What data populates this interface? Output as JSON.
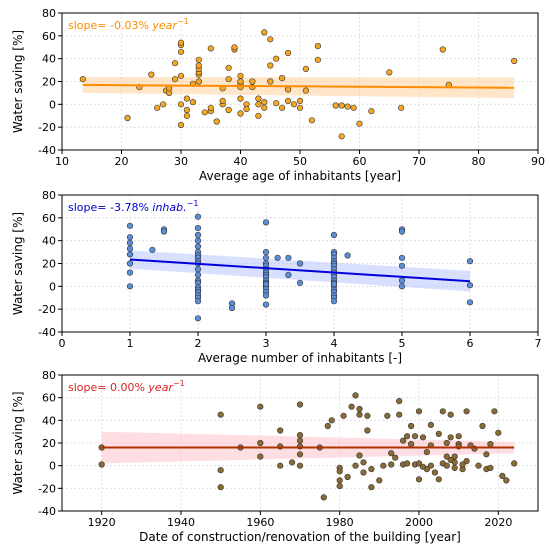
{
  "chart_data": [
    {
      "type": "scatter",
      "xlabel": "Average age of inhabitants [year]",
      "ylabel": "Water saving [%]",
      "xlim": [
        10,
        90
      ],
      "ylim": [
        -40,
        80
      ],
      "xticks": [
        10,
        20,
        30,
        40,
        50,
        60,
        70,
        80,
        90
      ],
      "yticks": [
        -40,
        -20,
        0,
        20,
        40,
        60,
        80
      ],
      "grid": true,
      "annotation": {
        "prefix": "slope= -0.03% ",
        "unit": "year",
        "exponent": "−1",
        "position": "top-left"
      },
      "colors": {
        "marker": "#f5a623",
        "line": "#ff8c00",
        "band": "#ffc888",
        "text": "#ff8c00"
      },
      "regression": {
        "x": [
          13.5,
          86
        ],
        "y": [
          17,
          14.5
        ],
        "band_halfwidth": [
          7,
          9
        ]
      },
      "x": [
        13.5,
        21,
        23,
        25,
        26,
        27,
        27.5,
        28,
        28,
        29,
        29,
        30,
        30,
        30,
        30,
        30,
        30,
        31,
        31,
        31,
        32,
        32,
        33,
        33,
        33,
        33,
        33,
        33,
        34,
        35,
        35,
        35,
        36,
        37,
        37,
        37,
        38,
        38,
        38,
        39,
        39,
        40,
        40,
        40,
        40,
        40,
        40,
        41,
        41,
        42,
        42,
        43,
        43,
        43,
        44,
        44,
        44,
        45,
        45,
        45,
        46,
        46,
        47,
        47,
        48,
        48,
        48,
        49,
        50,
        50,
        51,
        51,
        52,
        53,
        53,
        56,
        57,
        57,
        58,
        59,
        60,
        62,
        65,
        67,
        74,
        75,
        86
      ],
      "y": [
        22,
        -12,
        15,
        26,
        -3,
        0,
        12,
        10,
        14,
        36,
        22,
        0,
        25,
        46,
        52,
        54,
        -18,
        -10,
        -5,
        5,
        2,
        18,
        20,
        26,
        28,
        31,
        34,
        39,
        -7,
        -6,
        49,
        -3,
        -15,
        0,
        3,
        14,
        22,
        32,
        -5,
        48,
        50,
        15,
        18,
        -8,
        20,
        25,
        5,
        0,
        -4,
        15,
        20,
        -10,
        0,
        5,
        63,
        -3,
        2,
        20,
        34,
        57,
        1,
        40,
        -3,
        23,
        3,
        45,
        13,
        0,
        3,
        -3,
        12,
        31,
        -14,
        39,
        51,
        -1,
        -1,
        -28,
        -2,
        -3,
        -17,
        -6,
        28,
        -3,
        48,
        17,
        38
      ]
    },
    {
      "type": "scatter",
      "xlabel": "Average number of inhabitants [-]",
      "ylabel": "Water saving [%]",
      "xlim": [
        0,
        7
      ],
      "ylim": [
        -40,
        80
      ],
      "xticks": [
        0,
        1,
        2,
        3,
        4,
        5,
        6,
        7
      ],
      "yticks": [
        -40,
        -20,
        0,
        20,
        40,
        60,
        80
      ],
      "grid": true,
      "annotation": {
        "prefix": "slope= -3.78% ",
        "unit": "inhab.",
        "exponent": "−1",
        "position": "top-left"
      },
      "colors": {
        "marker": "#5b8fd9",
        "line": "#0000dd",
        "band": "#aab8ff",
        "text": "#0000cc"
      },
      "regression": {
        "x": [
          1,
          6
        ],
        "y": [
          23.5,
          4.5
        ],
        "band_halfwidth": [
          8,
          9
        ]
      },
      "x": [
        1,
        1,
        1,
        1,
        1,
        1,
        1,
        1,
        1.33,
        1.5,
        1.5,
        2,
        2,
        2,
        2,
        2,
        2,
        2,
        2,
        2,
        2,
        2,
        2,
        2,
        2,
        2,
        2,
        2,
        2,
        2,
        2,
        2,
        2.5,
        2.5,
        3,
        3,
        3,
        3,
        3,
        3,
        3,
        3,
        3,
        3,
        3,
        3,
        3,
        3,
        3,
        3,
        3,
        3.17,
        3.33,
        3.33,
        3.5,
        3.5,
        4,
        4,
        4,
        4,
        4,
        4,
        4,
        4,
        4,
        4,
        4,
        4,
        4,
        4,
        4,
        4,
        4,
        4,
        4,
        4,
        4.2,
        5,
        5,
        5,
        5,
        5,
        5,
        6,
        6,
        6
      ],
      "y": [
        53,
        43,
        38,
        33,
        28,
        20,
        12,
        0,
        32,
        50,
        48,
        61,
        51,
        45,
        40,
        35,
        30,
        27,
        25,
        22,
        5,
        3,
        -1,
        -3,
        -5,
        -8,
        -10,
        -13,
        -28,
        15,
        10,
        20,
        -15,
        -19,
        56,
        30,
        25,
        20,
        18,
        15,
        12,
        10,
        8,
        5,
        3,
        0,
        -2,
        -5,
        -8,
        -16,
        2,
        25,
        25,
        10,
        20,
        3,
        45,
        30,
        28,
        25,
        22,
        20,
        18,
        15,
        12,
        10,
        8,
        5,
        3,
        0,
        -3,
        -5,
        -8,
        -10,
        -13,
        2,
        27,
        50,
        48,
        25,
        18,
        5,
        0,
        22,
        1,
        -14
      ]
    },
    {
      "type": "scatter",
      "xlabel": "Date of construction/renovation of the building [year]",
      "ylabel": "Water saving [%]",
      "xlim": [
        1910,
        2030
      ],
      "ylim": [
        -40,
        80
      ],
      "xticks": [
        1920,
        1940,
        1960,
        1980,
        2000,
        2020
      ],
      "yticks": [
        -40,
        -20,
        0,
        20,
        40,
        60,
        80
      ],
      "grid": true,
      "annotation": {
        "prefix": "slope= 0.00% ",
        "unit": "year",
        "exponent": "−1",
        "position": "top-left"
      },
      "colors": {
        "marker": "#8a6a35",
        "line": "#b03000",
        "band": "#ffb6c1",
        "text": "#dd2222"
      },
      "regression": {
        "x": [
          1920,
          2024
        ],
        "y": [
          16,
          16
        ],
        "band_halfwidth": [
          14,
          5
        ]
      },
      "x": [
        1920,
        1920,
        1950,
        1950,
        1950,
        1955,
        1960,
        1960,
        1960,
        1965,
        1965,
        1965,
        1968,
        1970,
        1970,
        1970,
        1970,
        1970,
        1970,
        1975,
        1976,
        1977,
        1978,
        1980,
        1980,
        1980,
        1980,
        1981,
        1982,
        1983,
        1984,
        1984,
        1985,
        1985,
        1985,
        1986,
        1986,
        1987,
        1987,
        1988,
        1988,
        1990,
        1991,
        1992,
        1993,
        1993,
        1994,
        1995,
        1995,
        1996,
        1996,
        1997,
        1997,
        1998,
        1998,
        1999,
        1999,
        2000,
        2000,
        2000,
        2001,
        2001,
        2002,
        2002,
        2003,
        2003,
        2003,
        2004,
        2005,
        2005,
        2006,
        2006,
        2007,
        2007,
        2007,
        2008,
        2008,
        2008,
        2009,
        2009,
        2009,
        2010,
        2010,
        2010,
        2011,
        2011,
        2012,
        2012,
        2013,
        2014,
        2015,
        2016,
        2017,
        2017,
        2018,
        2018,
        2019,
        2020,
        2021,
        2022,
        2024
      ],
      "y": [
        16,
        1,
        45,
        -4,
        -19,
        16,
        52,
        20,
        8,
        31,
        0,
        17,
        3,
        54,
        27,
        22,
        10,
        0,
        17,
        16,
        -28,
        35,
        40,
        -13,
        -2,
        -5,
        -18,
        44,
        -10,
        52,
        62,
        0,
        50,
        9,
        45,
        3,
        -6,
        31,
        44,
        -3,
        -19,
        -13,
        0,
        44,
        1,
        11,
        7,
        57,
        45,
        22,
        1,
        26,
        2,
        19,
        35,
        1,
        26,
        48,
        2,
        -12,
        -1,
        25,
        -3,
        12,
        36,
        18,
        0,
        -6,
        -12,
        28,
        2,
        48,
        20,
        0,
        8,
        45,
        25,
        5,
        -2,
        8,
        3,
        26,
        19,
        17,
        -3,
        1,
        48,
        4,
        18,
        15,
        0,
        35,
        -3,
        10,
        19,
        -2,
        48,
        29,
        -9,
        -13,
        2
      ]
    }
  ]
}
